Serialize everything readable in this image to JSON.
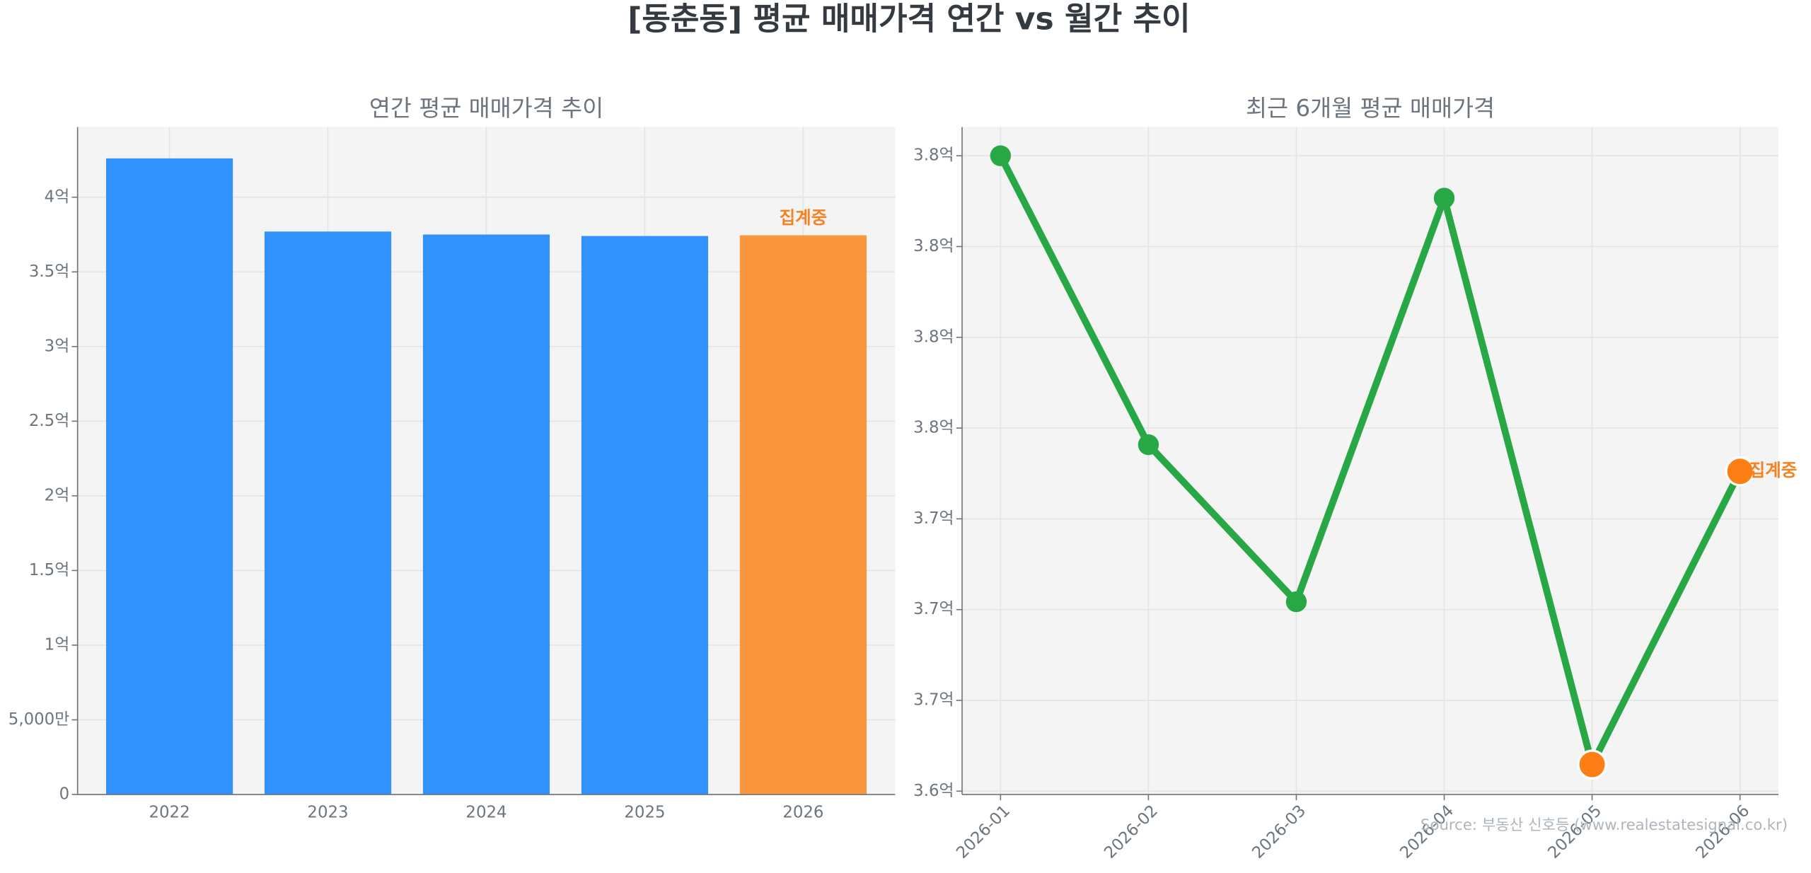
{
  "chart_data": [
    {
      "type": "bar",
      "figure_title": "[동춘동] 평균 매매가격 연간 vs 월간 추이",
      "title": "연간 평균 매매가격 추이",
      "categories": [
        "2022",
        "2023",
        "2024",
        "2025",
        "2026"
      ],
      "values": [
        426000000,
        377000000,
        375000000,
        374000000,
        374500000
      ],
      "colors": [
        "#3192fc",
        "#3192fc",
        "#3192fc",
        "#3192fc",
        "#f9963e"
      ],
      "annotation": "집계중",
      "annotation_color": "#f58220",
      "ylim": [
        0,
        447000000
      ],
      "yticks": [
        0,
        {
          "value": 50000000,
          "label": "5,000만"
        },
        {
          "value": 100000000,
          "label": "1억"
        },
        {
          "value": 150000000,
          "label": "1.5억"
        },
        {
          "value": 200000000,
          "label": "2억"
        },
        {
          "value": 250000000,
          "label": "2.5억"
        },
        {
          "value": 300000000,
          "label": "3억"
        },
        {
          "value": 350000000,
          "label": "3.5억"
        },
        {
          "value": 400000000,
          "label": "4억"
        }
      ],
      "grid": true
    },
    {
      "type": "line",
      "title": "최근 6개월 평균 매매가격",
      "categories": [
        "2026-01",
        "2026-02",
        "2026-03",
        "2026-04",
        "2026-05",
        "2026-06"
      ],
      "series": [
        {
          "name": "평균 매매가격",
          "color": "#28a745",
          "values": [
            384000000,
            374450000,
            369260000,
            382600000,
            363880000,
            373570000
          ],
          "marker_colors": [
            "#28a745",
            "#28a745",
            "#28a745",
            "#28a745",
            "#fd7e14",
            "#fd7e14"
          ]
        }
      ],
      "annotation": "집계중",
      "annotation_color": "#f58220",
      "source": "Source: 부동산 신호등 (www.realestatesignal.co.kr)",
      "ylim": [
        362890000,
        384950000
      ],
      "yticks": [
        {
          "value": 363000000,
          "label": "3.6억"
        },
        {
          "value": 366000000,
          "label": "3.7억"
        },
        {
          "value": 369000000,
          "label": "3.7억"
        },
        {
          "value": 372000000,
          "label": "3.7억"
        },
        {
          "value": 375000000,
          "label": "3.8억"
        },
        {
          "value": 378000000,
          "label": "3.8억"
        },
        {
          "value": 381000000,
          "label": "3.8억"
        },
        {
          "value": 384000000,
          "label": "3.8억"
        }
      ],
      "grid": true
    }
  ]
}
